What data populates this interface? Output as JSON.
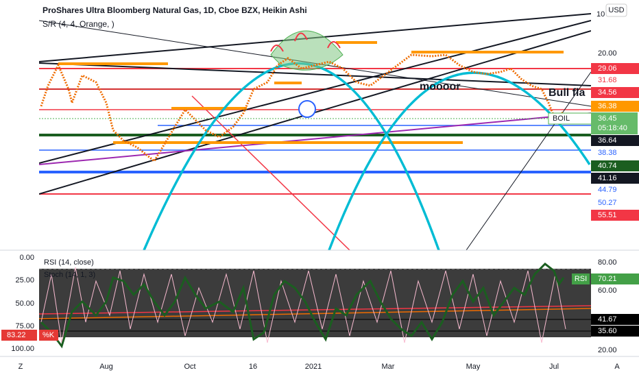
{
  "header": {
    "title": "ProShares Ultra Bloomberg Natural Gas, 1D, Cboe BZX, Heikin Ashi",
    "indicator": "S/R (4, 4, Orange, )",
    "currency": "USD",
    "top_tick": "10"
  },
  "annotations": {
    "moooor": "moooor",
    "bull_flag": "Bull fla"
  },
  "price_axis": {
    "ticks": [
      "20.00"
    ],
    "labels": [
      {
        "text": "29.06",
        "color": "#f23645"
      },
      {
        "text": "31.68",
        "color": "#ffffff"
      },
      {
        "text": "34.56",
        "color": "#f23645"
      },
      {
        "text": "36.38",
        "color": "#ff9800"
      },
      {
        "text": "36.64",
        "color": "#131722"
      },
      {
        "text": "38.38",
        "color": "#ffffff"
      },
      {
        "text": "40.74",
        "color": "#1b5e20"
      },
      {
        "text": "41.16",
        "color": "#131722"
      },
      {
        "text": "44.79",
        "color": "#ffffff"
      },
      {
        "text": "50.27",
        "color": "#ffffff"
      },
      {
        "text": "55.51",
        "color": "#f23645"
      }
    ],
    "symbol": "BOIL",
    "last_price": "36.45",
    "countdown": "05:18:40"
  },
  "rsi_pane": {
    "rsi_title": "RSI (14, close)",
    "stoch_title": "Stoch (14, 1, 3)",
    "left_ticks": [
      "0.00",
      "25.00",
      "50.00",
      "75.00",
      "100.00"
    ],
    "right_ticks": [
      "80.00",
      "60.00",
      "20.00"
    ],
    "rsi_tag": "RSI",
    "rsi_value": "70.21",
    "level_a": "41.67",
    "level_b": "35.60",
    "k_value": "83.22",
    "k_tag": "%K"
  },
  "time_axis": [
    "Aug",
    "Oct",
    "16",
    "2021",
    "Mar",
    "May",
    "Jul"
  ],
  "corners": {
    "left": "Z",
    "right": "A"
  }
}
